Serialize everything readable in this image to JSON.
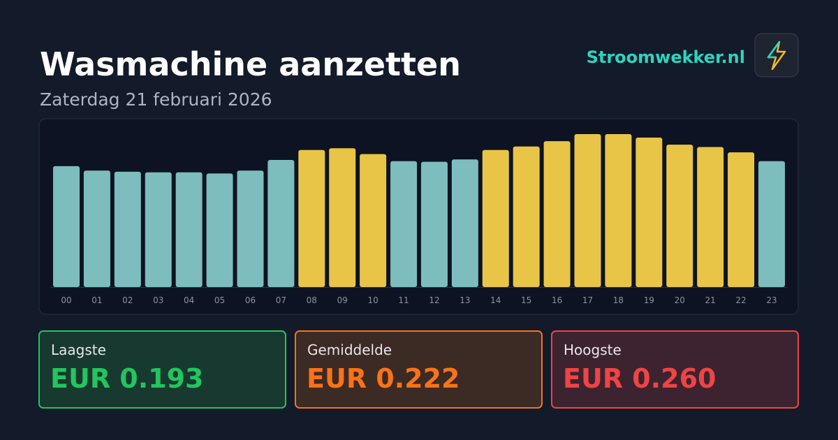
{
  "header": {
    "title": "Wasmachine aanzetten",
    "subtitle": "Zaterdag 21 februari 2026",
    "brand": "Stroomwekker.nl"
  },
  "chart_data": {
    "type": "bar",
    "categories": [
      "00",
      "01",
      "02",
      "03",
      "04",
      "05",
      "06",
      "07",
      "08",
      "09",
      "10",
      "11",
      "12",
      "13",
      "14",
      "15",
      "16",
      "17",
      "18",
      "19",
      "20",
      "21",
      "22",
      "23"
    ],
    "values": [
      0.2055,
      0.198,
      0.196,
      0.195,
      0.195,
      0.193,
      0.198,
      0.216,
      0.233,
      0.236,
      0.226,
      0.214,
      0.213,
      0.217,
      0.233,
      0.239,
      0.248,
      0.26,
      0.26,
      0.254,
      0.242,
      0.238,
      0.229,
      0.214
    ],
    "colors": [
      "#7dbdbd",
      "#7dbdbd",
      "#7dbdbd",
      "#7dbdbd",
      "#7dbdbd",
      "#7dbdbd",
      "#7dbdbd",
      "#7dbdbd",
      "#e8c547",
      "#e8c547",
      "#e8c547",
      "#7dbdbd",
      "#7dbdbd",
      "#7dbdbd",
      "#e8c547",
      "#e8c547",
      "#e8c547",
      "#e8c547",
      "#e8c547",
      "#e8c547",
      "#e8c547",
      "#e8c547",
      "#e8c547",
      "#7dbdbd"
    ],
    "ylim": [
      0,
      0.26
    ]
  },
  "stats": [
    {
      "label": "Laagste",
      "value": "EUR 0.193"
    },
    {
      "label": "Gemiddelde",
      "value": "EUR 0.222"
    },
    {
      "label": "Hoogste",
      "value": "EUR 0.260"
    }
  ]
}
